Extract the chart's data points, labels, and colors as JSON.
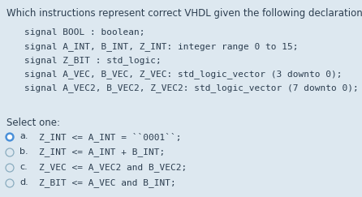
{
  "bg_color": "#dde8f0",
  "title": "Which instructions represent correct VHDL given the following declarations ?",
  "title_fontsize": 8.5,
  "code_lines": [
    "signal BOOL : boolean;",
    "signal A_INT, B_INT, Z_INT: integer range 0 to 15;",
    "signal Z_BIT : std_logic;",
    "signal A_VEC, B_VEC, Z_VEC: std_logic_vector (3 downto 0);",
    "signal A_VEC2, B_VEC2, Z_VEC2: std_logic_vector (7 downto 0);"
  ],
  "code_fontsize": 8.0,
  "select_label": "Select one:",
  "select_fontsize": 8.5,
  "options": [
    {
      "label": "a.",
      "text": "Z_INT <= A_INT = ``0001``;",
      "selected": true
    },
    {
      "label": "b.",
      "text": "Z_INT <= A_INT + B_INT;",
      "selected": false
    },
    {
      "label": "c.",
      "text": "Z_VEC <= A_VEC2 and B_VEC2;",
      "selected": false
    },
    {
      "label": "d.",
      "text": "Z_BIT <= A_VEC and B_INT;",
      "selected": false
    }
  ],
  "option_fontsize": 8.0,
  "radio_selected_color": "#4a90d9",
  "text_color": "#2c3e50",
  "code_color": "#2c3e50"
}
